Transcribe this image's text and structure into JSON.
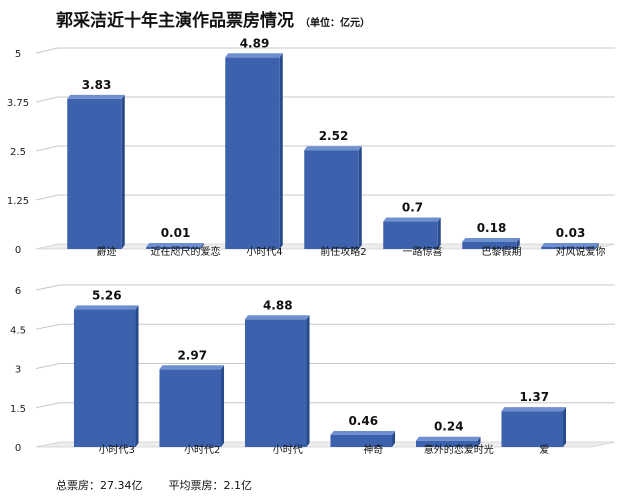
{
  "title": "郭采洁近十年主演作品票房情况",
  "unit": "（单位：亿元）",
  "colors": {
    "bar_front": "#3d62ad",
    "bar_top": "#6e8fd0",
    "bar_side": "#274a8c",
    "grid": "#c8c8c8"
  },
  "chart_data": [
    {
      "type": "bar",
      "categories": [
        "爵迹",
        "近在咫尺的爱恋",
        "小时代4",
        "前任攻略2",
        "一路惊喜",
        "巴黎假期",
        "对风说爱你"
      ],
      "values": [
        3.83,
        0.01,
        4.89,
        2.52,
        0.7,
        0.18,
        0.03
      ],
      "data_labels": [
        "3.83",
        "0.01",
        "4.89",
        "2.52",
        "0.7",
        "0.18",
        "0.03"
      ],
      "yticks": [
        "0",
        "1.25",
        "2.5",
        "3.75",
        "5"
      ],
      "ylim": [
        0,
        5
      ],
      "grid": true,
      "legend": "none"
    },
    {
      "type": "bar",
      "categories": [
        "小时代3",
        "小时代2",
        "小时代",
        "神奇",
        "意外的恋爱时光",
        "爱"
      ],
      "values": [
        5.26,
        2.97,
        4.88,
        0.46,
        0.24,
        1.37
      ],
      "data_labels": [
        "5.26",
        "2.97",
        "4.88",
        "0.46",
        "0.24",
        "1.37"
      ],
      "yticks": [
        "0",
        "1.5",
        "3",
        "4.5",
        "6"
      ],
      "ylim": [
        0,
        6
      ],
      "grid": true,
      "legend": "none"
    }
  ],
  "footer": {
    "total": "总票房：27.34亿",
    "average": "平均票房：2.1亿"
  }
}
